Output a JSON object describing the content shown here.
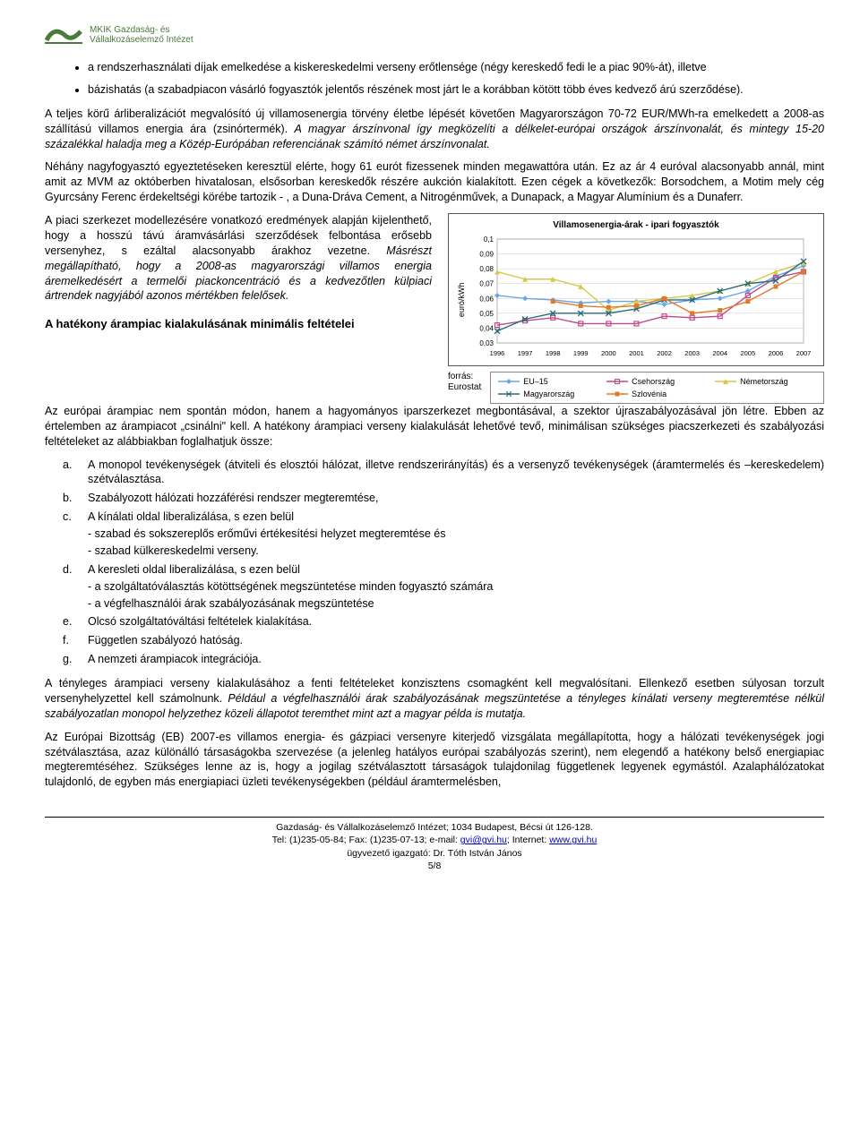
{
  "logo": {
    "line1": "MKIK Gazdaság- és",
    "line2": "Vállalkozáselemző Intézet"
  },
  "bullets": [
    "a rendszerhasználati díjak emelkedése a kiskereskedelmi verseny erőtlensége (négy kereskedő fedi le a piac 90%-át), illetve",
    "bázishatás (a szabadpiacon vásárló fogyasztók jelentős részének most járt le a korábban kötött több éves kedvező árú szerződése)."
  ],
  "para1": "A teljes körű árliberalizációt megvalósító új villamosenergia törvény életbe lépését követően Magyarországon 70-72 EUR/MWh-ra emelkedett a 2008-as szállítású villamos energia ára (zsinórtermék).",
  "para1_italic": " A magyar árszínvonal így megközelíti a délkelet-európai országok árszínvonalát, és mintegy 15-20 százalékkal haladja meg a Közép-Európában referenciának számító német árszínvonalat.",
  "para2": "Néhány nagyfogyasztó egyeztetéseken keresztül elérte, hogy 61 eurót fizessenek minden megawattóra után. Ez az ár 4 euróval alacsonyabb annál, mint amit az MVM az októberben hivatalosan, elsősorban kereskedők részére aukción kialakított.  Ezen cégek a következők: Borsodchem, a Motim  mely cég Gyurcsány Ferenc érdekeltségi körébe tartozik - , a Duna-Dráva Cement, a Nitrogénművek, a Dunapack, a Magyar Alumínium és a Dunaferr.",
  "leftcol": {
    "p1a": "A piaci szerkezet modellezésére vonatkozó eredmények alapján kijelenthető, hogy a hosszú távú áramvásárlási szerződések felbontása erősebb versenyhez, s ezáltal alacsonyabb árakhoz vezetne.",
    "p1b": " Másrészt megállapítható, hogy a 2008-as magyarországi villamos energia áremelkedésért a termelői piackoncentráció és a kedvezőtlen külpiaci ártrendek nagyjából azonos mértékben felelősek.",
    "h": "A hatékony árampiac kialakulásának minimális feltételei"
  },
  "chart": {
    "title": "Villamosenergia-árak - ipari fogyasztók",
    "ylabel": "euró/kWh",
    "years": [
      "1996",
      "1997",
      "1998",
      "1999",
      "2000",
      "2001",
      "2002",
      "2003",
      "2004",
      "2005",
      "2006",
      "2007"
    ],
    "yticks": [
      "0,03",
      "0,04",
      "0,05",
      "0,06",
      "0,07",
      "0,08",
      "0,09",
      "0,1"
    ],
    "ymin": 0.03,
    "ymax": 0.1,
    "series": [
      {
        "name": "EU–15",
        "color": "#6aa5e8",
        "marker": "diamond",
        "values": [
          0.062,
          0.06,
          0.059,
          0.057,
          0.058,
          0.058,
          0.056,
          0.059,
          0.06,
          0.065,
          0.075,
          0.082
        ]
      },
      {
        "name": "Csehország",
        "color": "#c04a8a",
        "marker": "square",
        "values": [
          0.042,
          0.045,
          0.047,
          0.043,
          0.043,
          0.043,
          0.048,
          0.047,
          0.048,
          0.062,
          0.074,
          0.078
        ]
      },
      {
        "name": "Németország",
        "color": "#d7c94a",
        "marker": "triangle",
        "values": [
          0.078,
          0.073,
          0.073,
          0.068,
          0.052,
          0.058,
          0.06,
          0.062,
          0.065,
          0.07,
          0.078,
          0.084
        ]
      },
      {
        "name": "Magyarország",
        "color": "#2a6a7a",
        "marker": "x",
        "values": [
          0.038,
          0.046,
          0.05,
          0.05,
          0.05,
          0.053,
          0.059,
          0.059,
          0.065,
          0.07,
          0.072,
          0.085
        ]
      },
      {
        "name": "Szlovénia",
        "color": "#e07a2a",
        "marker": "squarefill",
        "values": [
          null,
          null,
          0.058,
          0.055,
          0.054,
          0.055,
          0.06,
          0.05,
          0.052,
          0.058,
          0.068,
          0.078
        ]
      }
    ],
    "source_label": "forrás:",
    "source_name": "Eurostat"
  },
  "para3": "Az európai árampiac nem spontán módon, hanem a hagyományos iparszerkezet megbontásával, a szektor újraszabályozásával jön létre. Ebben az értelemben az árampiacot „csinálni\" kell. A hatékony árampiaci verseny kialakulását lehetővé tevő, minimálisan  szükséges piacszerkezeti és szabályozási feltételeket az alábbiakban foglalhatjuk össze:",
  "list": [
    {
      "k": "a.",
      "t": "A monopol tevékenységek (átviteli és elosztói hálózat, illetve rendszerirányítás) és a versenyző tevékenységek (áramtermelés és –kereskedelem) szétválasztása."
    },
    {
      "k": "b.",
      "t": "Szabályozott hálózati hozzáférési rendszer megteremtése,"
    },
    {
      "k": "c.",
      "t": "A kínálati oldal liberalizálása, s ezen belül",
      "sub": [
        "- szabad és sokszereplős erőművi értékesítési helyzet megteremtése és",
        "- szabad külkereskedelmi verseny."
      ]
    },
    {
      "k": "d.",
      "t": "A keresleti oldal liberalizálása, s ezen belül",
      "sub": [
        "- a szolgáltatóválasztás kötöttségének megszüntetése minden fogyasztó számára",
        "- a végfelhasználói árak szabályozásának megszüntetése"
      ]
    },
    {
      "k": "e.",
      "t": "Olcsó szolgáltatóváltási feltételek kialakítása."
    },
    {
      "k": "f.",
      "t": "Független szabályozó hatóság."
    },
    {
      "k": "g.",
      "t": "A nemzeti árampiacok integrációja."
    }
  ],
  "para4a": "A tényleges árampiaci verseny kialakulásához a fenti feltételeket konzisztens csomagként kell megvalósítani. Ellenkező esetben súlyosan torzult versenyhelyzettel kell számolnunk.",
  "para4b": " Például a végfelhasználói árak szabályozásának megszüntetése a tényleges kínálati verseny megteremtése nélkül szabályozatlan monopol helyzethez közeli állapotot teremthet  mint azt a magyar példa is mutatja.",
  "para5": "Az Európai Bizottság (EB) 2007-es villamos energia- és gázpiaci versenyre kiterjedő vizsgálata megállapította, hogy a hálózati tevékenységek jogi szétválasztása, azaz különálló társaságokba szervezése (a jelenleg hatályos európai szabályozás szerint), nem elegendő a hatékony belső energiapiac megteremtéséhez. Szükséges lenne az is, hogy  a jogilag szétválasztott társaságok tulajdonilag függetlenek legyenek egymástól. Azalaphálózatokat tulajdonló, de egyben más energiapiaci üzleti tevékenységekben (például áramtermelésben,",
  "footer": {
    "l1a": "Gazdaság- és Vállalkozáselemző Intézet; 1034 Budapest, Bécsi út 126-128.",
    "l2a": "Tel: (1)235-05-84;  Fax: (1)235-07-13;  e-mail: ",
    "l2b": "gvi@gvi.hu",
    "l2c": ";  Internet: ",
    "l2d": "www.gvi.hu",
    "l3": "ügyvezető igazgató: Dr. Tóth István János",
    "pg": "5/8"
  }
}
